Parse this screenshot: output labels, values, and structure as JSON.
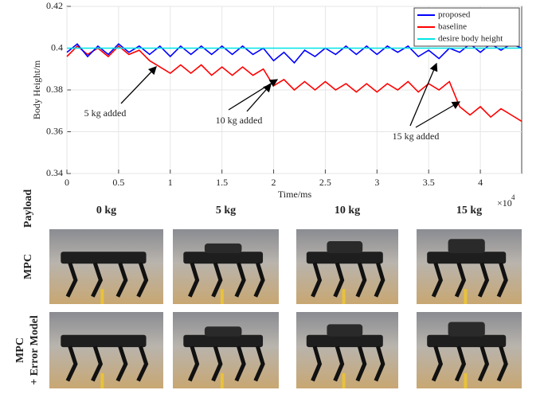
{
  "chart_data": {
    "type": "line",
    "x_label": "Time/ms",
    "x_exponent_base": "×10",
    "x_exponent": "4",
    "y_label": "Body Height/m",
    "xlim": [
      0,
      4.4
    ],
    "xticks": [
      0,
      0.5,
      1,
      1.5,
      2,
      2.5,
      3,
      3.5,
      4
    ],
    "ylim": [
      0.34,
      0.42
    ],
    "yticks": [
      0.34,
      0.36,
      0.38,
      0.4,
      0.42
    ],
    "grid": true,
    "legend": "upper right",
    "x": [
      0,
      0.1,
      0.2,
      0.3,
      0.4,
      0.5,
      0.6,
      0.7,
      0.8,
      0.9,
      1.0,
      1.1,
      1.2,
      1.3,
      1.4,
      1.5,
      1.6,
      1.7,
      1.8,
      1.9,
      2.0,
      2.1,
      2.2,
      2.3,
      2.4,
      2.5,
      2.6,
      2.7,
      2.8,
      2.9,
      3.0,
      3.1,
      3.2,
      3.3,
      3.4,
      3.5,
      3.6,
      3.7,
      3.8,
      3.9,
      4.0,
      4.1,
      4.2,
      4.3,
      4.4
    ],
    "series": [
      {
        "name": "proposed",
        "color": "#0000ff",
        "values": [
          0.398,
          0.402,
          0.396,
          0.401,
          0.397,
          0.402,
          0.398,
          0.401,
          0.397,
          0.401,
          0.396,
          0.401,
          0.397,
          0.401,
          0.397,
          0.401,
          0.397,
          0.401,
          0.397,
          0.4,
          0.394,
          0.398,
          0.393,
          0.399,
          0.396,
          0.4,
          0.397,
          0.401,
          0.397,
          0.401,
          0.397,
          0.401,
          0.398,
          0.401,
          0.396,
          0.399,
          0.395,
          0.4,
          0.398,
          0.402,
          0.398,
          0.402,
          0.399,
          0.402,
          0.4
        ]
      },
      {
        "name": "baseline",
        "color": "#ff0000",
        "values": [
          0.396,
          0.401,
          0.397,
          0.4,
          0.396,
          0.401,
          0.397,
          0.399,
          0.394,
          0.391,
          0.388,
          0.392,
          0.388,
          0.392,
          0.387,
          0.391,
          0.387,
          0.391,
          0.387,
          0.39,
          0.382,
          0.385,
          0.38,
          0.384,
          0.38,
          0.384,
          0.38,
          0.383,
          0.379,
          0.383,
          0.379,
          0.383,
          0.38,
          0.384,
          0.379,
          0.383,
          0.38,
          0.384,
          0.372,
          0.368,
          0.372,
          0.367,
          0.371,
          0.368,
          0.365
        ]
      },
      {
        "name": "desire body height",
        "color": "#00e5e5",
        "values": [
          0.4,
          0.4,
          0.4,
          0.4,
          0.4,
          0.4,
          0.4,
          0.4,
          0.4,
          0.4,
          0.4,
          0.4,
          0.4,
          0.4,
          0.4,
          0.4,
          0.4,
          0.4,
          0.4,
          0.4,
          0.4,
          0.4,
          0.4,
          0.4,
          0.4,
          0.4,
          0.4,
          0.4,
          0.4,
          0.4,
          0.4,
          0.4,
          0.4,
          0.4,
          0.4,
          0.4,
          0.4,
          0.4,
          0.4,
          0.4,
          0.4,
          0.4,
          0.4,
          0.4,
          0.4
        ]
      }
    ],
    "annotations": [
      {
        "text": "5 kg added"
      },
      {
        "text": "10 kg added"
      },
      {
        "text": "15 kg added"
      }
    ]
  },
  "figure": {
    "row_labels": {
      "payload": "Payload",
      "mpc": "MPC",
      "mpc_error": [
        "MPC",
        "+ Error Model"
      ]
    },
    "payloads": [
      "0 kg",
      "5 kg",
      "10 kg",
      "15 kg"
    ]
  }
}
